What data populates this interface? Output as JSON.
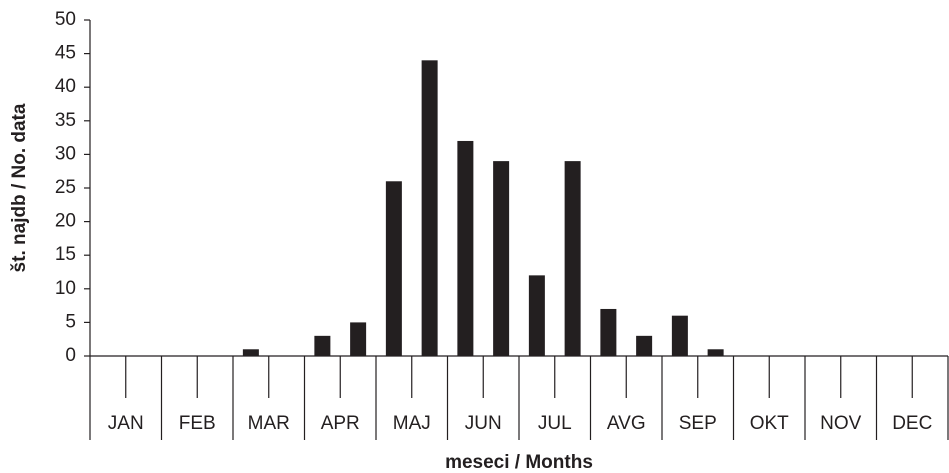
{
  "chart_data": {
    "type": "bar",
    "x_label": "meseci / Months",
    "y_label": "št. najdb / No. data",
    "categories": [
      "JAN",
      "FEB",
      "MAR",
      "APR",
      "MAJ",
      "JUN",
      "JUL",
      "AVG",
      "SEP",
      "OKT",
      "NOV",
      "DEC"
    ],
    "series": [
      {
        "color": "#231f20",
        "values": [
          0,
          0,
          1,
          3,
          26,
          32,
          12,
          7,
          6,
          0,
          0,
          0
        ]
      },
      {
        "color": "#231f20",
        "values": [
          0,
          0,
          0,
          5,
          44,
          29,
          29,
          3,
          1,
          0,
          0,
          0
        ]
      }
    ],
    "ylim": [
      0,
      50
    ],
    "yticks": [
      0,
      5,
      10,
      15,
      20,
      25,
      30,
      35,
      40,
      45,
      50
    ]
  }
}
